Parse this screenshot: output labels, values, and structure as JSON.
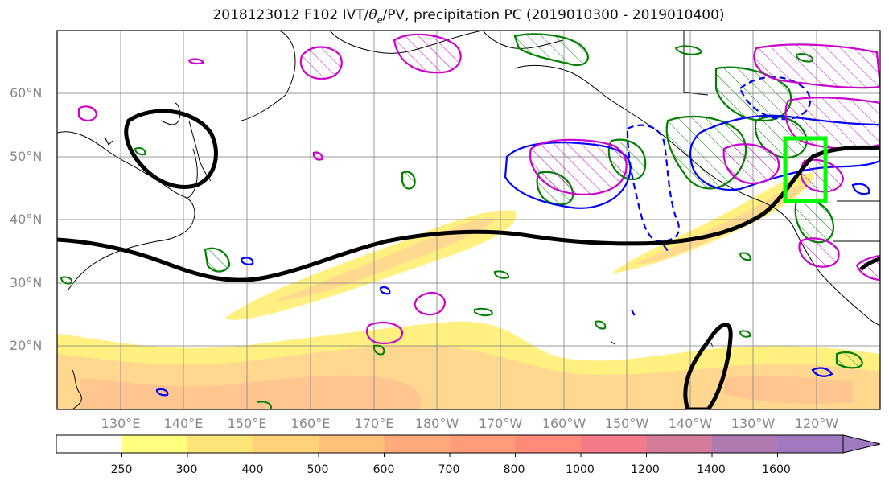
{
  "title": {
    "prefix": "2018123012 F102 IVT/",
    "theta": "θ",
    "theta_sub": "e",
    "suffix": "/PV, precipitation PC (2019010300 - 2019010400)"
  },
  "lat_labels": [
    "60°N",
    "50°N",
    "40°N",
    "30°N",
    "20°N"
  ],
  "lon_labels": [
    "130°E",
    "140°E",
    "150°E",
    "160°E",
    "170°E",
    "180°W",
    "170°W",
    "160°W",
    "150°W",
    "140°W",
    "130°W",
    "120°W"
  ],
  "colorbar": {
    "levels": [
      "250",
      "300",
      "400",
      "500",
      "600",
      "700",
      "800",
      "1000",
      "1200",
      "1400",
      "1600"
    ],
    "colors": [
      "#ffffff",
      "#ffff80",
      "#ffe47a",
      "#ffd27a",
      "#ffc07a",
      "#ffaa7a",
      "#ff9a7a",
      "#ff8a7a",
      "#f47a8a",
      "#d47a9a",
      "#b07ab0",
      "#a07ac0"
    ]
  },
  "map_colors": {
    "ivt_fill": "#fff07a",
    "ivt_mid": "#ffd27a",
    "ivt_high": "#ffbc80",
    "pv_contour": "#000000",
    "theta_pos": "#008000",
    "theta_neg": "#0000ff",
    "precip_pc": "#cc00cc",
    "target_box": "#00ff00"
  }
}
